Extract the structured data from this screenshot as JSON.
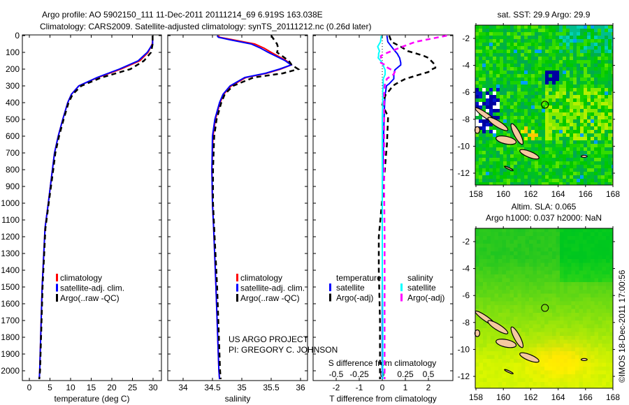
{
  "title": {
    "line1": "Argo profile: AO 5902150_111 11-Dec-2011 20111214_69 6.919S 163.038E",
    "line2": "Climatology: CARS2009. Satellite-adjusted climatology: synTS_20111212.nc (0.26d later)"
  },
  "credits": {
    "project": "US ARGO PROJECT",
    "pi": "PI: GREGORY C. JOHNSON",
    "imos": "©IMOS 18-Dec-2011 17:00:56"
  },
  "colors": {
    "climatology": "#ff0000",
    "satellite": "#0000ff",
    "argo": "#000000",
    "sal_satellite": "#00ffff",
    "sal_argo": "#ff00ff",
    "land": "#f5c9a0"
  },
  "chart_data": [
    {
      "type": "line",
      "id": "temperature",
      "xlabel": "temperature (deg C)",
      "ylabel": "depth",
      "xlim": [
        -1.7,
        32.2
      ],
      "ylim": [
        2060,
        0
      ],
      "xticks": [
        "0",
        "5",
        "10",
        "15",
        "20",
        "25",
        "30"
      ],
      "xtick_values": [
        0,
        5,
        10,
        15,
        20,
        25,
        30
      ],
      "yticks": [
        "0",
        "100",
        "200",
        "300",
        "400",
        "500",
        "600",
        "700",
        "800",
        "900",
        "1000",
        "1100",
        "1200",
        "1300",
        "1400",
        "1500",
        "1600",
        "1700",
        "1800",
        "1900",
        "2000"
      ],
      "ytick_values": [
        0,
        100,
        200,
        300,
        400,
        500,
        600,
        700,
        800,
        900,
        1000,
        1100,
        1200,
        1300,
        1400,
        1500,
        1600,
        1700,
        1800,
        1900,
        2000
      ],
      "legend": [
        "climatology",
        "satellite-adj. clim.",
        "Argo(..raw -QC)"
      ],
      "depth": [
        0,
        25,
        50,
        100,
        150,
        200,
        250,
        300,
        350,
        400,
        500,
        600,
        700,
        800,
        1000,
        1150,
        1500,
        2000,
        2050
      ],
      "series": [
        {
          "name": "climatology",
          "color": "#ff0000",
          "dash": false,
          "values": [
            29.9,
            29.9,
            29.8,
            28.8,
            26.8,
            22.2,
            16.6,
            12.0,
            10.2,
            9.3,
            8.1,
            7.0,
            6.1,
            5.6,
            4.6,
            3.8,
            3.1,
            2.5,
            2.4
          ]
        },
        {
          "name": "satellite-adj. clim.",
          "color": "#0000ff",
          "dash": false,
          "values": [
            29.9,
            29.9,
            29.9,
            28.6,
            26.4,
            21.8,
            16.4,
            12.0,
            10.2,
            9.3,
            8.1,
            7.0,
            6.1,
            5.6,
            4.6,
            3.8,
            3.1,
            2.5,
            2.4
          ]
        },
        {
          "name": "Argo(..raw -QC)",
          "color": "#000000",
          "dash": true,
          "values": [
            29.9,
            29.9,
            29.9,
            29.5,
            27.8,
            24.5,
            17.5,
            12.6,
            10.5,
            9.5,
            8.3,
            7.2,
            6.3,
            5.8,
            4.7,
            3.9,
            3.2,
            2.6,
            2.4
          ]
        }
      ]
    },
    {
      "type": "line",
      "id": "salinity",
      "xlabel": "salinity",
      "ylabel": "depth",
      "xlim": [
        33.74,
        36.12
      ],
      "ylim": [
        2060,
        0
      ],
      "xticks": [
        "34",
        "34.5",
        "35",
        "35.5",
        "36"
      ],
      "xtick_values": [
        34,
        34.5,
        35,
        35.5,
        36
      ],
      "legend": [
        "climatology",
        "satellite-adj. clim.",
        "Argo(..raw -QC)"
      ],
      "depth": [
        0,
        10,
        25,
        50,
        75,
        100,
        150,
        175,
        200,
        225,
        250,
        300,
        350,
        400,
        500,
        600,
        800,
        1000,
        1150,
        1500,
        2000,
        2050
      ],
      "series": [
        {
          "name": "climatology",
          "color": "#ff0000",
          "dash": false,
          "values": [
            34.6,
            34.62,
            34.85,
            35.22,
            35.38,
            35.5,
            35.76,
            35.84,
            35.66,
            35.42,
            35.07,
            34.82,
            34.69,
            34.63,
            34.55,
            34.51,
            34.49,
            34.5,
            34.52,
            34.56,
            34.61,
            34.62
          ]
        },
        {
          "name": "satellite-adj. clim.",
          "color": "#0000ff",
          "dash": false,
          "values": [
            34.58,
            34.6,
            34.8,
            35.16,
            35.32,
            35.45,
            35.74,
            35.84,
            35.64,
            35.4,
            35.05,
            34.8,
            34.68,
            34.62,
            34.54,
            34.5,
            34.49,
            34.5,
            34.52,
            34.56,
            34.61,
            34.62
          ]
        },
        {
          "name": "Argo(..raw -QC)",
          "color": "#000000",
          "dash": true,
          "values": [
            35.5,
            35.52,
            35.55,
            35.6,
            35.62,
            35.6,
            35.8,
            35.85,
            35.96,
            35.7,
            35.2,
            34.85,
            34.71,
            34.65,
            34.57,
            34.53,
            34.51,
            34.51,
            34.53,
            34.58,
            34.63,
            34.64
          ]
        }
      ]
    },
    {
      "type": "line",
      "id": "difference",
      "xlabel": "T difference from climatology",
      "xlabel_top": "S difference from climatology",
      "xlim": [
        -3.0,
        3.06
      ],
      "xlim_top": [
        -0.75,
        0.77
      ],
      "ylim": [
        2060,
        0
      ],
      "xticks": [
        "-2",
        "-1",
        "0",
        "1",
        "2"
      ],
      "xtick_values": [
        -2,
        -1,
        0,
        1,
        2
      ],
      "xticks_top": [
        "-0.5",
        "-0.25",
        "0",
        "0.25",
        "0.5"
      ],
      "xtick_values_top": [
        -0.5,
        -0.25,
        0,
        0.25,
        0.5
      ],
      "legend": {
        "temperature_header": "temperature",
        "salinity_header": "salinity",
        "temperature": [
          "satellite",
          "Argo(-adj)"
        ],
        "salinity": [
          "satellite",
          "Argo(-adj)"
        ]
      },
      "depth": [
        0,
        37,
        66,
        92,
        108,
        121,
        133,
        162,
        175,
        192,
        204,
        217,
        233,
        246,
        258,
        287,
        300,
        329,
        350,
        412,
        483,
        650,
        900,
        1200,
        1400,
        1700,
        2000,
        2050
      ],
      "series": [
        {
          "name": "temperature satellite",
          "axis": "T",
          "color": "#0000ff",
          "dash": false,
          "values": [
            0.2,
            0.24,
            0.4,
            0.55,
            0.65,
            0.7,
            0.75,
            0.8,
            0.8,
            0.65,
            0.55,
            0.52,
            0.5,
            0.5,
            0.5,
            0.3,
            0.18,
            0.15,
            0.12,
            0.1,
            0.08,
            0.05,
            0.0,
            0.0,
            0.0,
            0.0,
            0.0,
            0.0
          ]
        },
        {
          "name": "temperature Argo(-adj)",
          "axis": "T",
          "color": "#000000",
          "dash": true,
          "values": [
            0.3,
            0.4,
            0.8,
            1.1,
            1.5,
            1.8,
            2.0,
            2.2,
            2.3,
            2.3,
            2.1,
            2.0,
            1.6,
            1.3,
            1.0,
            0.6,
            0.45,
            0.3,
            0.15,
            0.0,
            0.25,
            0.2,
            0.05,
            -0.15,
            -0.15,
            -0.1,
            -0.1,
            -0.1
          ]
        },
        {
          "name": "salinity satellite",
          "axis": "S",
          "color": "#00ffff",
          "dash": false,
          "values": [
            -0.01,
            -0.02,
            -0.05,
            -0.03,
            -0.04,
            -0.04,
            -0.045,
            0.0,
            0.01,
            0.02,
            0.03,
            0.03,
            0.03,
            0.02,
            0.01,
            0.01,
            0.01,
            0.005,
            0.005,
            0.005,
            0.0,
            0.0,
            0.0,
            0.0,
            0.0,
            0.005,
            0.005,
            0.005
          ]
        },
        {
          "name": "salinity Argo(-adj)",
          "axis": "S",
          "color": "#ff00ff",
          "dash": true,
          "values": [
            0.7,
            0.36,
            0.22,
            0.1,
            0.03,
            -0.015,
            -0.015,
            -0.015,
            0.03,
            0.06,
            0.1,
            0.135,
            0.12,
            0.08,
            0.05,
            0.03,
            0.025,
            0.02,
            0.02,
            0.02,
            0.02,
            0.02,
            0.02,
            0.025,
            0.025,
            0.025,
            0.025,
            0.025
          ]
        }
      ]
    }
  ],
  "maps": [
    {
      "id": "sst",
      "title": "sat. SST: 29.9 Argo: 29.9",
      "lon_ticks": [
        "158",
        "160",
        "162",
        "164",
        "166",
        "168"
      ],
      "lat_ticks": [
        "-2",
        "-4",
        "-6",
        "-8",
        "-10",
        "-12"
      ],
      "argo_position": {
        "lon": 163.038,
        "lat": -6.919
      }
    },
    {
      "id": "sla",
      "title1": "Altim. SLA: 0.065",
      "title2": "Argo h1000: 0.037 h2000: NaN",
      "lon_ticks": [
        "158",
        "160",
        "162",
        "164",
        "166",
        "168"
      ],
      "lat_ticks": [
        "-2",
        "-4",
        "-6",
        "-8",
        "-10",
        "-12"
      ],
      "argo_position": {
        "lon": 163.038,
        "lat": -6.919
      }
    }
  ]
}
